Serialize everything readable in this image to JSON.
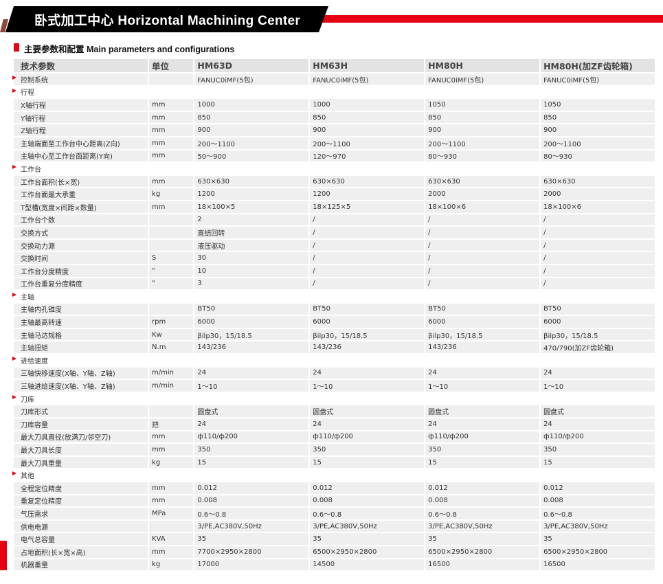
{
  "banner": {
    "title": "卧式加工中心 Horizontal Machining Center"
  },
  "section": {
    "title": "主要参数和配置   Main parameters and configurations"
  },
  "colors": {
    "accent": "#e60012",
    "row": "#efefef",
    "header": "#e3e3e3"
  },
  "table": {
    "headers": [
      "技术参数",
      "单位",
      "HM63D",
      "HM63H",
      "HM80H",
      "HM80H(加ZF齿轮箱)"
    ],
    "rows": [
      {
        "section": true,
        "name": "控制系统",
        "unit": "",
        "values": [
          "FANUC0iMF(5包)",
          "FANUC0iMF(5包)",
          "FANUC0iMF(5包)",
          "FANUC0iMF(5包)"
        ],
        "shaded": true
      },
      {
        "section": true,
        "name": "行程",
        "unit": "",
        "values": [
          "",
          "",
          "",
          ""
        ]
      },
      {
        "name": "X轴行程",
        "unit": "mm",
        "values": [
          "1000",
          "1000",
          "1050",
          "1050"
        ]
      },
      {
        "name": "Y轴行程",
        "unit": "mm",
        "values": [
          "850",
          "850",
          "850",
          "850"
        ]
      },
      {
        "name": "Z轴行程",
        "unit": "mm",
        "values": [
          "900",
          "900",
          "900",
          "900"
        ]
      },
      {
        "name": "主轴端面至工作台中心距离(Z向)",
        "unit": "mm",
        "values": [
          "200～1100",
          "200～1100",
          "200～1100",
          "200～1100"
        ]
      },
      {
        "name": "主轴中心至工作台面距离(Y向)",
        "unit": "mm",
        "values": [
          "50～900",
          "120～970",
          "80～930",
          "80～930"
        ]
      },
      {
        "section": true,
        "name": "工作台",
        "unit": "",
        "values": [
          "",
          "",
          "",
          ""
        ]
      },
      {
        "name": "工作台面积(长×宽)",
        "unit": "mm",
        "values": [
          "630×630",
          "630×630",
          "630×630",
          "630×630"
        ]
      },
      {
        "name": "工作台面最大承重",
        "unit": "kg",
        "values": [
          "1200",
          "1200",
          "2000",
          "2000"
        ]
      },
      {
        "name": "T型槽(宽度×间距×数量)",
        "unit": "mm",
        "values": [
          "18×100×5",
          "18×125×5",
          "18×100×6",
          "18×100×6"
        ]
      },
      {
        "name": "工作台个数",
        "unit": "",
        "values": [
          "2",
          "/",
          "/",
          "/"
        ]
      },
      {
        "name": "交换方式",
        "unit": "",
        "values": [
          "直结回转",
          "/",
          "/",
          "/"
        ]
      },
      {
        "name": "交换动力源",
        "unit": "",
        "values": [
          "液压驱动",
          "/",
          "/",
          "/"
        ]
      },
      {
        "name": "交换时间",
        "unit": "S",
        "values": [
          "30",
          "/",
          "/",
          "/"
        ]
      },
      {
        "name": "工作台分度精度",
        "unit": "\"",
        "values": [
          "10",
          "/",
          "/",
          "/"
        ]
      },
      {
        "name": "工作台重复分度精度",
        "unit": "\"",
        "values": [
          "3",
          "/",
          "/",
          "/"
        ]
      },
      {
        "section": true,
        "name": "主轴",
        "unit": "",
        "values": [
          "",
          "",
          "",
          ""
        ]
      },
      {
        "name": "主轴内孔锥度",
        "unit": "",
        "values": [
          "BT50",
          "BT50",
          "BT50",
          "BT50"
        ]
      },
      {
        "name": "主轴最高转速",
        "unit": "rpm",
        "values": [
          "6000",
          "6000",
          "6000",
          "6000"
        ]
      },
      {
        "name": "主轴马达规格",
        "unit": "Kw",
        "values": [
          "βilp30，15/18.5",
          "βilp30，15/18.5",
          "βilp30，15/18.5",
          "βilp30，15/18.5"
        ]
      },
      {
        "name": "主轴扭矩",
        "unit": "N.m",
        "values": [
          "143/236",
          "143/236",
          "143/236",
          "470/790(加ZF齿轮箱)"
        ]
      },
      {
        "section": true,
        "name": "进给速度",
        "unit": "",
        "values": [
          "",
          "",
          "",
          ""
        ]
      },
      {
        "name": "三轴快移速度(X轴、Y轴、Z轴)",
        "unit": "m/min",
        "values": [
          "24",
          "24",
          "24",
          "24"
        ]
      },
      {
        "name": "三轴进给速度(X轴、Y轴、Z轴)",
        "unit": "m/min",
        "values": [
          "1～10",
          "1～10",
          "1～10",
          "1～10"
        ]
      },
      {
        "section": true,
        "name": "刀库",
        "unit": "",
        "values": [
          "",
          "",
          "",
          ""
        ]
      },
      {
        "name": "刀库形式",
        "unit": "",
        "values": [
          "圆盘式",
          "圆盘式",
          "圆盘式",
          "圆盘式"
        ]
      },
      {
        "name": "刀库容量",
        "unit": "把",
        "values": [
          "24",
          "24",
          "24",
          "24"
        ]
      },
      {
        "name": "最大刀具直径(放满刀/邻空刀)",
        "unit": "mm",
        "values": [
          "ф110/ф200",
          "ф110/ф200",
          "ф110/ф200",
          "ф110/ф200"
        ]
      },
      {
        "name": "最大刀具长度",
        "unit": "mm",
        "values": [
          "350",
          "350",
          "350",
          "350"
        ]
      },
      {
        "name": "最大刀具重量",
        "unit": "kg",
        "values": [
          "15",
          "15",
          "15",
          "15"
        ]
      },
      {
        "section": true,
        "name": "其他",
        "unit": "",
        "values": [
          "",
          "",
          "",
          ""
        ]
      },
      {
        "name": "全程定位精度",
        "unit": "mm",
        "values": [
          "0.012",
          "0.012",
          "0.012",
          "0.012"
        ]
      },
      {
        "name": "重复定位精度",
        "unit": "mm",
        "values": [
          "0.008",
          "0.008",
          "0.008",
          "0.008"
        ]
      },
      {
        "name": "气压需求",
        "unit": "MPa",
        "values": [
          "0.6～0.8",
          "0.6～0.8",
          "0.6～0.8",
          "0.6～0.8"
        ]
      },
      {
        "name": "供电电源",
        "unit": "",
        "values": [
          "3/PE,AC380V,50Hz",
          "3/PE,AC380V,50Hz",
          "3/PE,AC380V,50Hz",
          "3/PE,AC380V,50Hz"
        ]
      },
      {
        "name": "电气总容量",
        "unit": "KVA",
        "values": [
          "35",
          "35",
          "35",
          "35"
        ]
      },
      {
        "name": "占地面积(长×宽×高)",
        "unit": "mm",
        "values": [
          "7700×2950×2800",
          "6500×2950×2800",
          "6500×2950×2800",
          "6500×2950×2800"
        ]
      },
      {
        "name": "机器重量",
        "unit": "kg",
        "values": [
          "17000",
          "14500",
          "16500",
          "16500"
        ]
      }
    ]
  }
}
